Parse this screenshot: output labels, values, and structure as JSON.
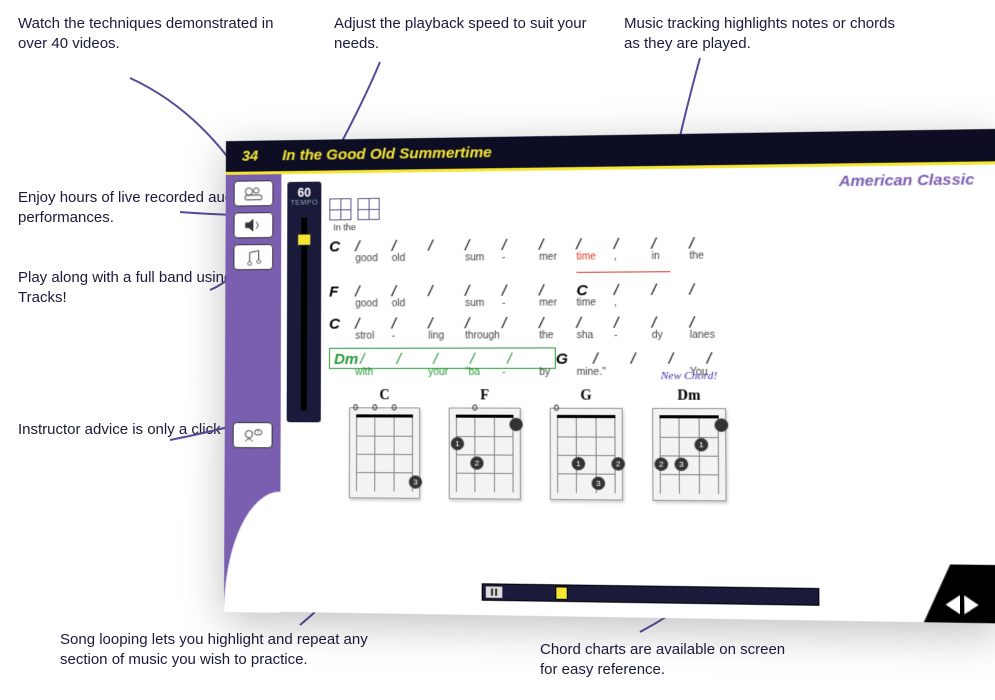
{
  "callouts": {
    "videos": "Watch the techniques demonstrated in over 40 videos.",
    "audio": "Enjoy hours of live recorded audio performances.",
    "jam": "Play along with a full band using Jam Tracks!",
    "instructor": "Instructor advice is only a click away.",
    "tempo": "Adjust the playback speed to suit your needs.",
    "tracking": "Music tracking highlights notes or chords as they are played.",
    "looping": "Song looping lets you highlight and repeat any section of music you wish to practice.",
    "chordcharts": "Chord charts are available on screen for easy reference."
  },
  "page_number": "34",
  "song_title": "In the Good Old Summertime",
  "subtitle": "American Classic",
  "tempo": {
    "value": "60",
    "label": "TEMPO"
  },
  "intro_text": "In the",
  "lines": [
    {
      "chord": "C",
      "lyrics": [
        "good",
        "old",
        "",
        "sum",
        "-",
        "mer",
        "time",
        ",",
        "in",
        "the"
      ],
      "highlight_idx": 6
    },
    {
      "chord": "F",
      "chord2": "C",
      "chord2_idx": 6,
      "lyrics": [
        "good",
        "old",
        "",
        "sum",
        "-",
        "mer",
        "time",
        ",",
        "",
        ""
      ]
    },
    {
      "chord": "C",
      "lyrics": [
        "strol",
        "-",
        "ling",
        "through",
        "",
        "the",
        "sha",
        "-",
        "dy",
        "lanes"
      ]
    },
    {
      "chord": "Dm",
      "chord2": "G",
      "chord2_idx": 5,
      "lyrics": [
        "with",
        "",
        "your",
        "\"ba",
        "-",
        "by",
        "mine.\"",
        "",
        "",
        "You"
      ],
      "loop": true,
      "loop_end": 5
    }
  ],
  "chord_diagrams": [
    {
      "name": "C",
      "open": [
        "0",
        "0",
        "0",
        ""
      ],
      "dots": [
        {
          "s": 3,
          "f": 3,
          "n": "3"
        }
      ]
    },
    {
      "name": "F",
      "open": [
        "",
        "0",
        "",
        ""
      ],
      "dots": [
        {
          "s": 1,
          "f": 2,
          "n": "2"
        },
        {
          "s": 0,
          "f": 1,
          "n": "1"
        },
        {
          "s": 3,
          "f": 0,
          "n": ""
        }
      ]
    },
    {
      "name": "G",
      "open": [
        "0",
        "",
        "",
        ""
      ],
      "dots": [
        {
          "s": 1,
          "f": 2,
          "n": "1"
        },
        {
          "s": 2,
          "f": 3,
          "n": "3"
        },
        {
          "s": 3,
          "f": 2,
          "n": "2"
        }
      ]
    },
    {
      "name": "Dm",
      "new": "New Chord!",
      "open": [
        "",
        "",
        "",
        ""
      ],
      "dots": [
        {
          "s": 0,
          "f": 2,
          "n": "2"
        },
        {
          "s": 1,
          "f": 2,
          "n": "3"
        },
        {
          "s": 2,
          "f": 1,
          "n": "1"
        },
        {
          "s": 3,
          "f": 0,
          "n": ""
        }
      ]
    }
  ],
  "colors": {
    "sidebar": "#7a5eb0",
    "accent": "#f5e633",
    "hl": "#e83a2a",
    "loop": "#2a9a3a",
    "titlebar": "#0d0d23"
  }
}
